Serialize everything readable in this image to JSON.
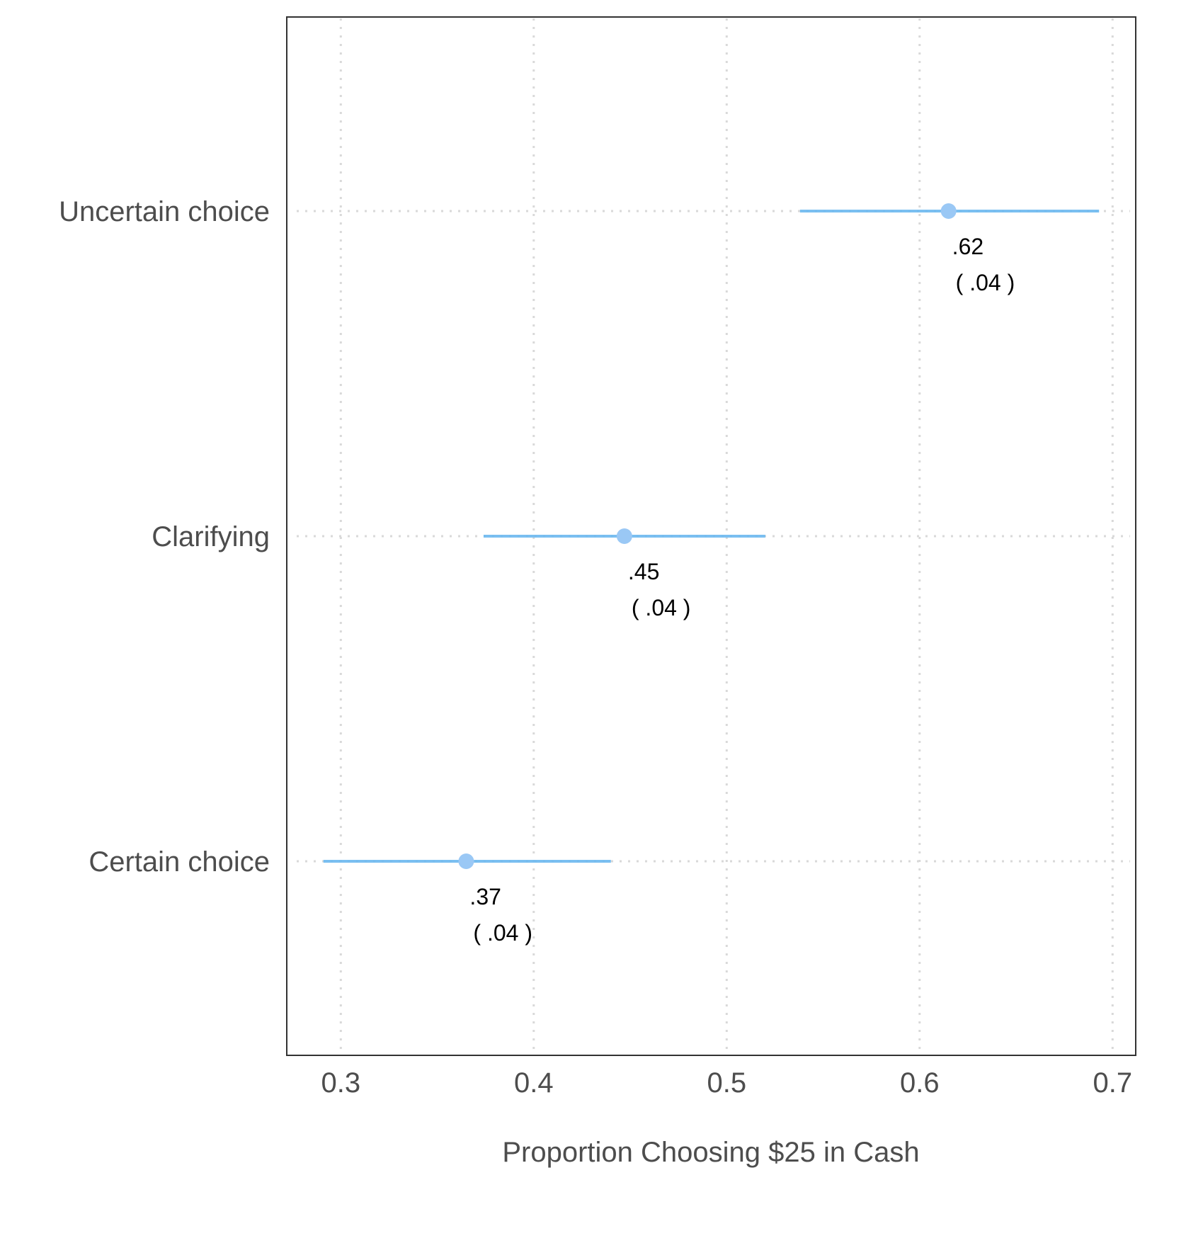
{
  "chart_data": {
    "type": "scatter",
    "title": "",
    "xlabel": "Proportion Choosing $25 in Cash",
    "ylabel": "",
    "xlim": [
      0.272,
      0.712
    ],
    "xticks": [
      {
        "value": 0.3,
        "label": "0.3"
      },
      {
        "value": 0.4,
        "label": "0.4"
      },
      {
        "value": 0.5,
        "label": "0.5"
      },
      {
        "value": 0.6,
        "label": "0.6"
      },
      {
        "value": 0.7,
        "label": "0.7"
      }
    ],
    "grid": true,
    "legend": "none",
    "colors": {
      "point": "#9ac8f5",
      "interval": "#6cb8f0",
      "grid": "#d9d9d9",
      "frame": "#333333"
    },
    "categories": [
      "Uncertain choice",
      "Clarifying",
      "Certain choice"
    ],
    "points": [
      {
        "category": "Uncertain choice",
        "estimate": 0.615,
        "lower": 0.538,
        "upper": 0.693,
        "label": ".62",
        "se_label": "( .04 )"
      },
      {
        "category": "Clarifying",
        "estimate": 0.447,
        "lower": 0.374,
        "upper": 0.52,
        "label": ".45",
        "se_label": "( .04 )"
      },
      {
        "category": "Certain choice",
        "estimate": 0.365,
        "lower": 0.291,
        "upper": 0.44,
        "label": ".37",
        "se_label": "( .04 )"
      }
    ]
  }
}
